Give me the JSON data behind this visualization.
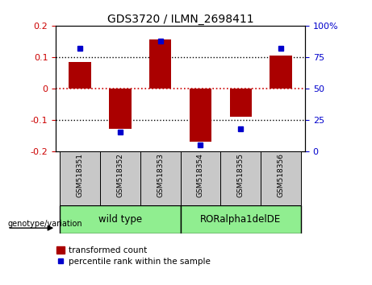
{
  "title": "GDS3720 / ILMN_2698411",
  "samples": [
    "GSM518351",
    "GSM518352",
    "GSM518353",
    "GSM518354",
    "GSM518355",
    "GSM518356"
  ],
  "bar_values": [
    0.085,
    -0.13,
    0.155,
    -0.17,
    -0.09,
    0.104
  ],
  "percentile_values": [
    82,
    15,
    88,
    5,
    18,
    82
  ],
  "bar_color": "#AA0000",
  "dot_color": "#0000CC",
  "ylim_left": [
    -0.2,
    0.2
  ],
  "ylim_right": [
    0,
    100
  ],
  "yticks_left": [
    -0.2,
    -0.1,
    0.0,
    0.1,
    0.2
  ],
  "yticks_right": [
    0,
    25,
    50,
    75,
    100
  ],
  "hline_zero_color": "#CC0000",
  "hline_dotted_color": "#000000",
  "bar_width": 0.55,
  "background_color": "#ffffff",
  "gray_color": "#C8C8C8",
  "green_color": "#90EE90",
  "wt_label": "wild type",
  "ror_label": "RORalpha1delDE",
  "gv_label": "genotype/variation",
  "legend_items": [
    "transformed count",
    "percentile rank within the sample"
  ]
}
